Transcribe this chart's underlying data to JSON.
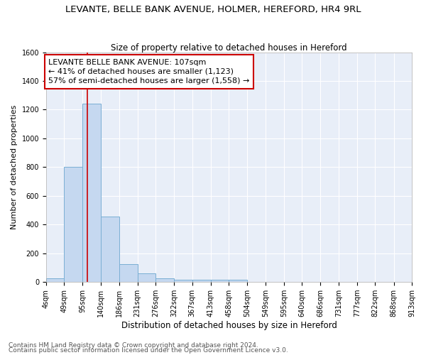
{
  "title1": "LEVANTE, BELLE BANK AVENUE, HOLMER, HEREFORD, HR4 9RL",
  "title2": "Size of property relative to detached houses in Hereford",
  "xlabel": "Distribution of detached houses by size in Hereford",
  "ylabel": "Number of detached properties",
  "bin_edges": [
    4,
    49,
    95,
    140,
    186,
    231,
    276,
    322,
    367,
    413,
    458,
    504,
    549,
    595,
    640,
    686,
    731,
    777,
    822,
    868,
    913
  ],
  "bar_heights": [
    25,
    800,
    1240,
    455,
    125,
    62,
    25,
    18,
    15,
    15,
    15,
    0,
    0,
    0,
    0,
    0,
    0,
    0,
    0,
    0
  ],
  "bar_color": "#c5d8f0",
  "bar_edge_color": "#7aafd4",
  "background_color": "#ffffff",
  "plot_bg_color": "#e8eef8",
  "grid_color": "#ffffff",
  "vline_x": 107,
  "vline_color": "#cc0000",
  "annotation_line1": "LEVANTE BELLE BANK AVENUE: 107sqm",
  "annotation_line2": "← 41% of detached houses are smaller (1,123)",
  "annotation_line3": "57% of semi-detached houses are larger (1,558) →",
  "annotation_box_color": "#cc0000",
  "annotation_text_color": "#000000",
  "ylim": [
    0,
    1600
  ],
  "yticks": [
    0,
    200,
    400,
    600,
    800,
    1000,
    1200,
    1400,
    1600
  ],
  "tick_labels": [
    "4sqm",
    "49sqm",
    "95sqm",
    "140sqm",
    "186sqm",
    "231sqm",
    "276sqm",
    "322sqm",
    "367sqm",
    "413sqm",
    "458sqm",
    "504sqm",
    "549sqm",
    "595sqm",
    "640sqm",
    "686sqm",
    "731sqm",
    "777sqm",
    "822sqm",
    "868sqm",
    "913sqm"
  ],
  "footnote1": "Contains HM Land Registry data © Crown copyright and database right 2024.",
  "footnote2": "Contains public sector information licensed under the Open Government Licence v3.0.",
  "title1_fontsize": 9.5,
  "title2_fontsize": 8.5,
  "xlabel_fontsize": 8.5,
  "ylabel_fontsize": 8,
  "tick_fontsize": 7,
  "annot_fontsize": 8,
  "footnote_fontsize": 6.5
}
